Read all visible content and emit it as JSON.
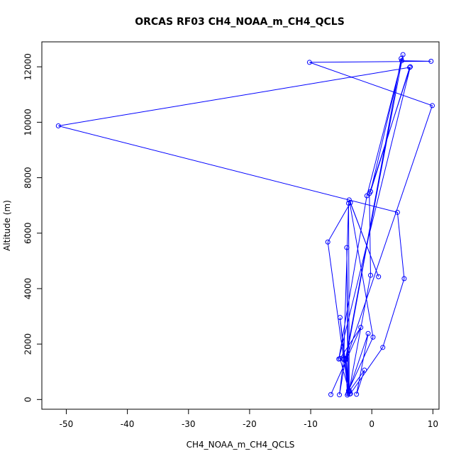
{
  "chart_data": {
    "type": "line",
    "title": "ORCAS RF03 CH4_NOAA_m_CH4_QCLS",
    "xlabel": "CH4_NOAA_m_CH4_QCLS",
    "ylabel": "Altitude (m)",
    "xlim": [
      -54,
      11
    ],
    "ylim": [
      -350,
      12900
    ],
    "xticks": [
      -50,
      -40,
      -30,
      -20,
      -10,
      0,
      10
    ],
    "yticks": [
      0,
      2000,
      4000,
      6000,
      8000,
      10000,
      12000
    ],
    "colors": {
      "series": "#0000ff",
      "frame": "#000000"
    },
    "points": [
      {
        "x": -6.7,
        "y": 180
      },
      {
        "x": -1.8,
        "y": 2600
      },
      {
        "x": -5.2,
        "y": 1480
      },
      {
        "x": -3.6,
        "y": 200
      },
      {
        "x": -4.6,
        "y": 1480
      },
      {
        "x": -5.3,
        "y": 170
      },
      {
        "x": -4.3,
        "y": 1480
      },
      {
        "x": -4.0,
        "y": 160
      },
      {
        "x": -4.2,
        "y": 1480
      },
      {
        "x": -3.8,
        "y": 300
      },
      {
        "x": -0.6,
        "y": 2380
      },
      {
        "x": -2.5,
        "y": 190
      },
      {
        "x": -1.2,
        "y": 1060
      },
      {
        "x": -3.7,
        "y": 300
      },
      {
        "x": -5.2,
        "y": 2960
      },
      {
        "x": -3.9,
        "y": 210
      },
      {
        "x": -4.1,
        "y": 5480
      },
      {
        "x": -3.8,
        "y": 330
      },
      {
        "x": 0.2,
        "y": 2250
      },
      {
        "x": -3.7,
        "y": 7200
      },
      {
        "x": 1.1,
        "y": 4430
      },
      {
        "x": -3.5,
        "y": 7100
      },
      {
        "x": -7.2,
        "y": 5680
      },
      {
        "x": -4.6,
        "y": 1440
      },
      {
        "x": -3.8,
        "y": 7080
      },
      {
        "x": -3.7,
        "y": 330
      },
      {
        "x": -0.2,
        "y": 4480
      },
      {
        "x": -0.4,
        "y": 7430
      },
      {
        "x": 6.3,
        "y": 12000
      },
      {
        "x": -5.4,
        "y": 1460
      },
      {
        "x": -0.8,
        "y": 7350
      },
      {
        "x": 4.9,
        "y": 12220
      },
      {
        "x": 9.7,
        "y": 12200
      },
      {
        "x": -10.2,
        "y": 12160
      },
      {
        "x": 9.9,
        "y": 10600
      },
      {
        "x": -4.2,
        "y": 1450
      },
      {
        "x": 4.8,
        "y": 12300
      },
      {
        "x": -4.3,
        "y": 1450
      },
      {
        "x": 5.1,
        "y": 12440
      },
      {
        "x": -0.2,
        "y": 7500
      },
      {
        "x": 6.2,
        "y": 11980
      },
      {
        "x": -51.3,
        "y": 9870
      },
      {
        "x": 4.2,
        "y": 6750
      },
      {
        "x": 5.3,
        "y": 4360
      },
      {
        "x": 1.8,
        "y": 1880
      },
      {
        "x": -3.5,
        "y": 210
      }
    ]
  }
}
